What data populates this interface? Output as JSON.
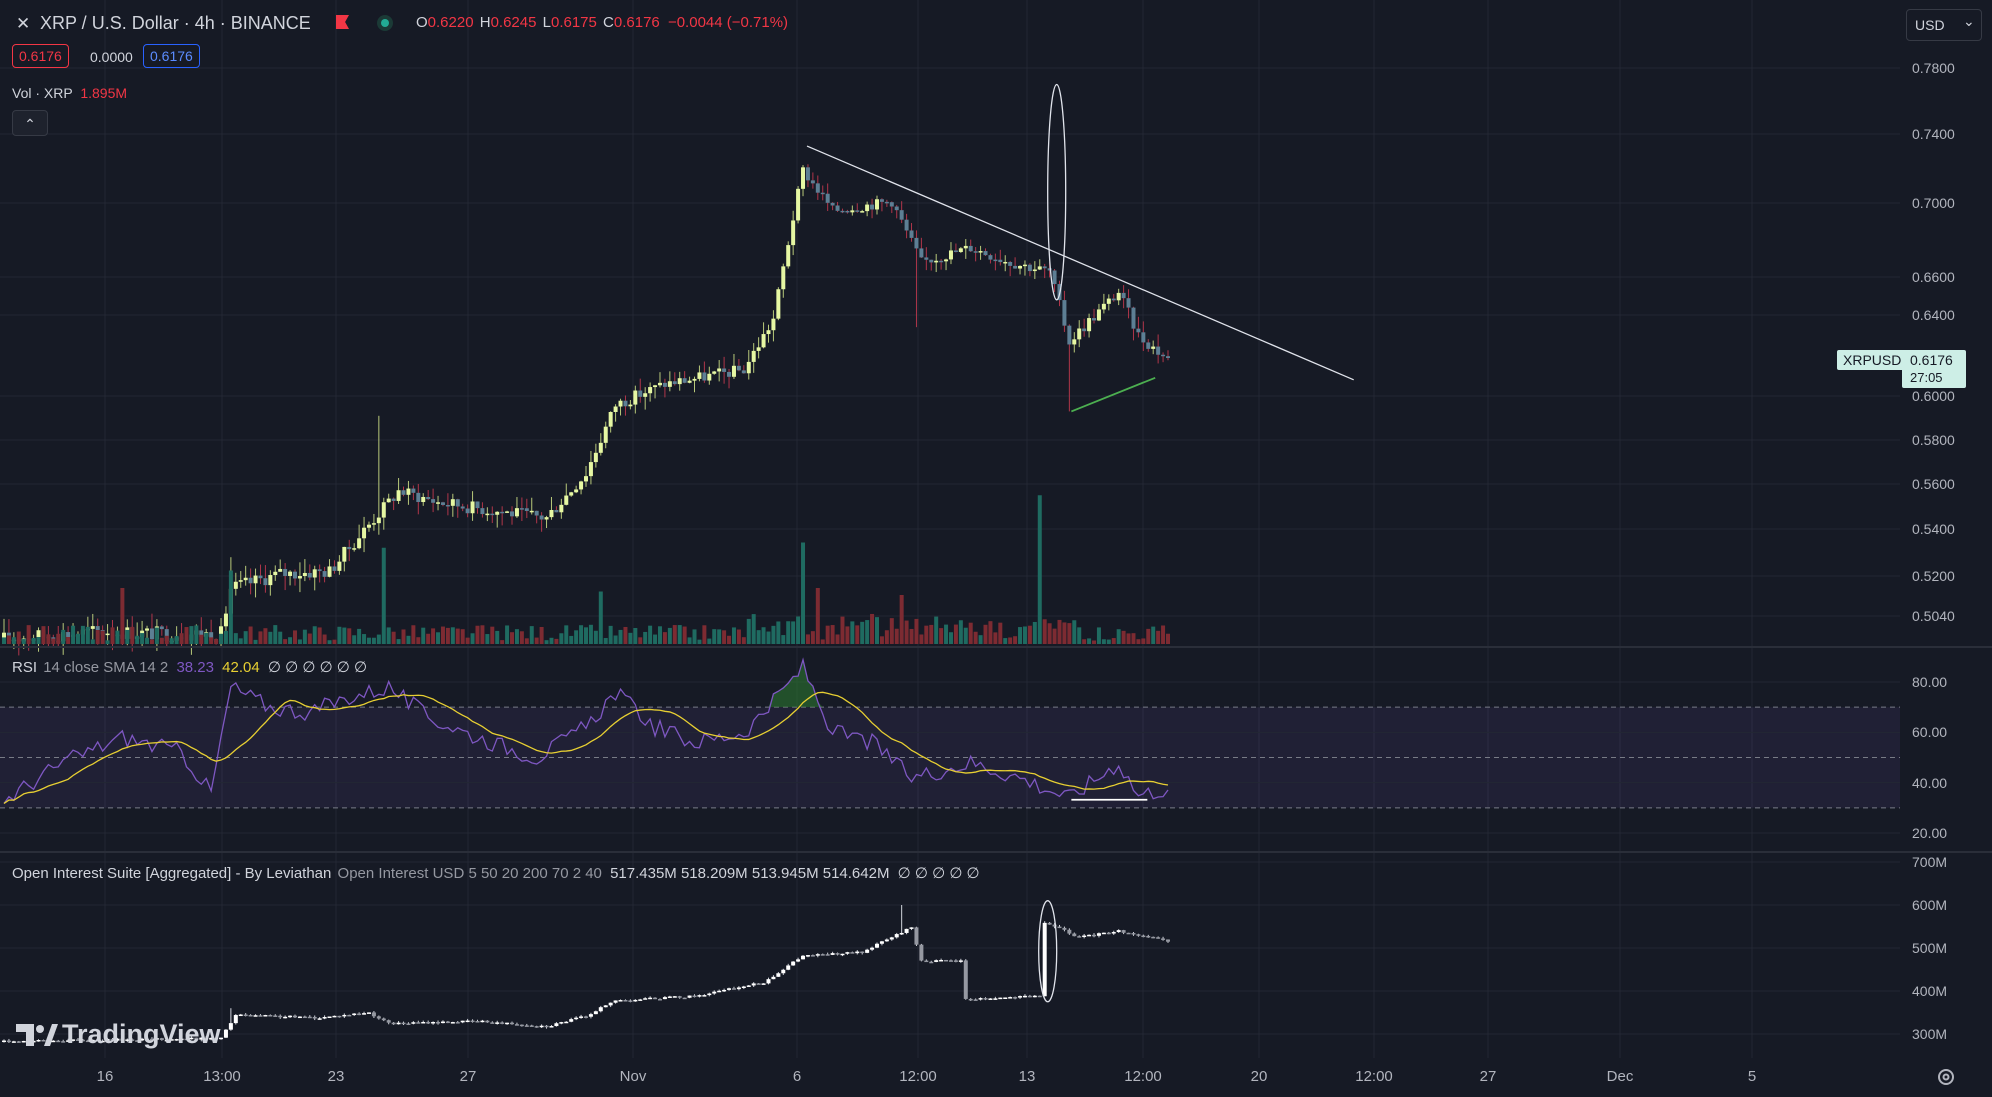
{
  "header": {
    "close_symbol": "✕",
    "symbol_title": "XRP / U.S. Dollar · 4h · BINANCE",
    "ohlc": {
      "o_label": "O",
      "o_value": "0.6220",
      "h_label": "H",
      "h_value": "0.6245",
      "l_label": "L",
      "l_value": "0.6175",
      "c_label": "C",
      "c_value": "0.6176",
      "change": "−0.0044 (−0.71%)"
    },
    "bid": "0.6176",
    "spread": "0.0000",
    "ask": "0.6176",
    "volume_label": "Vol · XRP",
    "volume_value": "1.895M",
    "collapse_symbol": "⌃"
  },
  "currency_selector": {
    "value": "USD",
    "caret": "⌄"
  },
  "price_label": {
    "symbol": "XRPUSD",
    "price": "0.6176",
    "countdown": "27:05"
  },
  "rsi_header": {
    "name": "RSI",
    "params": "14 close SMA 14 2",
    "rsi_value": "38.23",
    "sma_value": "42.04",
    "empties": "∅ ∅ ∅ ∅ ∅ ∅"
  },
  "oi_header": {
    "name": "Open Interest Suite [Aggregated] - By Leviathan",
    "params": "Open Interest USD 5 50 20 200 70 2 40",
    "values": "517.435M  518.209M  513.945M  514.642M",
    "empties": "∅ ∅ ∅ ∅ ∅"
  },
  "branding": {
    "logo_text": "TradingView"
  },
  "colors": {
    "background": "#161a25",
    "grid": "#232734",
    "bull": "#e6f7a3",
    "bear": "#5d7f94",
    "vol_up": "#1f6b61",
    "vol_down": "#7d2b32",
    "rsi": "#7e57c2",
    "rsi_sma": "#e7cf32",
    "oi": "#d1d4dc",
    "trendline": "#e0e3eb",
    "support_line": "#4caf50",
    "negative": "#f23645",
    "price_tag": "#cdeee6"
  },
  "chart_data": [
    {
      "id": "price",
      "type": "candlestick",
      "title": "XRP / U.S. Dollar · 4h · BINANCE",
      "y_ticks": [
        "0.7800",
        "0.7400",
        "0.7000",
        "0.6600",
        "0.6400",
        "0.6000",
        "0.5800",
        "0.5600",
        "0.5400",
        "0.5200",
        "0.5040"
      ],
      "x_ticks": [
        "16",
        "13:00",
        "23",
        "27",
        "Nov",
        "6",
        "12:00",
        "13",
        "12:00",
        "20",
        "12:00",
        "27",
        "Dec",
        "5"
      ],
      "anchors": [
        {
          "i": 0,
          "close": 0.495
        },
        {
          "i": 20,
          "close": 0.498
        },
        {
          "i": 30,
          "close": 0.497
        },
        {
          "i": 44,
          "close": 0.497
        },
        {
          "i": 46,
          "close": 0.515
        },
        {
          "i": 56,
          "close": 0.521
        },
        {
          "i": 66,
          "close": 0.522
        },
        {
          "i": 72,
          "close": 0.537
        },
        {
          "i": 80,
          "close": 0.557
        },
        {
          "i": 88,
          "close": 0.552
        },
        {
          "i": 100,
          "close": 0.548
        },
        {
          "i": 110,
          "close": 0.545
        },
        {
          "i": 118,
          "close": 0.565
        },
        {
          "i": 124,
          "close": 0.596
        },
        {
          "i": 134,
          "close": 0.606
        },
        {
          "i": 150,
          "close": 0.613
        },
        {
          "i": 156,
          "close": 0.638
        },
        {
          "i": 162,
          "close": 0.719
        },
        {
          "i": 168,
          "close": 0.696
        },
        {
          "i": 180,
          "close": 0.701
        },
        {
          "i": 186,
          "close": 0.668
        },
        {
          "i": 196,
          "close": 0.676
        },
        {
          "i": 204,
          "close": 0.668
        },
        {
          "i": 212,
          "close": 0.663
        },
        {
          "i": 216,
          "close": 0.627
        },
        {
          "i": 226,
          "close": 0.652
        },
        {
          "i": 230,
          "close": 0.63
        },
        {
          "i": 236,
          "close": 0.618
        }
      ],
      "annotations": {
        "resistance_trendline": [
          {
            "i": 162,
            "y": 0.733
          },
          {
            "i": 270,
            "y": 0.608
          }
        ],
        "support_line": [
          {
            "i": 216,
            "y": 0.593
          },
          {
            "i": 233,
            "y": 0.609
          }
        ],
        "highlight_ellipse": {
          "i": 211,
          "y_top": 0.77,
          "y_bottom": 0.648
        }
      }
    },
    {
      "id": "volume",
      "type": "bar",
      "series_name": "Vol · XRP",
      "last_value": "1.895M",
      "spikes": [
        {
          "i": 24,
          "rel": 0.32
        },
        {
          "i": 46,
          "rel": 0.42
        },
        {
          "i": 77,
          "rel": 0.55
        },
        {
          "i": 162,
          "rel": 0.58
        },
        {
          "i": 182,
          "rel": 0.28
        },
        {
          "i": 210,
          "rel": 0.85
        },
        {
          "i": 165,
          "rel": 0.32
        },
        {
          "i": 121,
          "rel": 0.3
        }
      ]
    },
    {
      "id": "rsi",
      "type": "line",
      "series": [
        {
          "name": "RSI 14 close",
          "last": 38.23
        },
        {
          "name": "SMA 14",
          "last": 42.04
        }
      ],
      "y_ticks": [
        "80.00",
        "60.00",
        "40.00",
        "20.00"
      ],
      "bands": {
        "upper": 70,
        "middle": 50,
        "lower": 30
      },
      "anchors": [
        {
          "i": 0,
          "v": 33
        },
        {
          "i": 12,
          "v": 48
        },
        {
          "i": 24,
          "v": 58
        },
        {
          "i": 36,
          "v": 52
        },
        {
          "i": 42,
          "v": 36
        },
        {
          "i": 46,
          "v": 78
        },
        {
          "i": 54,
          "v": 70
        },
        {
          "i": 62,
          "v": 68
        },
        {
          "i": 70,
          "v": 74
        },
        {
          "i": 78,
          "v": 78
        },
        {
          "i": 86,
          "v": 66
        },
        {
          "i": 96,
          "v": 58
        },
        {
          "i": 108,
          "v": 50
        },
        {
          "i": 118,
          "v": 62
        },
        {
          "i": 124,
          "v": 76
        },
        {
          "i": 132,
          "v": 62
        },
        {
          "i": 140,
          "v": 56
        },
        {
          "i": 150,
          "v": 60
        },
        {
          "i": 156,
          "v": 72
        },
        {
          "i": 162,
          "v": 86
        },
        {
          "i": 168,
          "v": 60
        },
        {
          "i": 176,
          "v": 56
        },
        {
          "i": 184,
          "v": 42
        },
        {
          "i": 196,
          "v": 48
        },
        {
          "i": 206,
          "v": 42
        },
        {
          "i": 216,
          "v": 34
        },
        {
          "i": 226,
          "v": 48
        },
        {
          "i": 230,
          "v": 35
        },
        {
          "i": 236,
          "v": 38
        }
      ],
      "annotations": {
        "horizontal_line": {
          "i0": 216,
          "i1": 231,
          "v": 34
        }
      }
    },
    {
      "id": "open_interest",
      "type": "candlestick",
      "title": "Open Interest Suite [Aggregated] - By Leviathan",
      "y_ticks": [
        "700M",
        "600M",
        "500M",
        "400M",
        "300M"
      ],
      "anchors": [
        {
          "i": 0,
          "v": 283
        },
        {
          "i": 44,
          "v": 290
        },
        {
          "i": 47,
          "v": 344
        },
        {
          "i": 64,
          "v": 338
        },
        {
          "i": 74,
          "v": 350
        },
        {
          "i": 78,
          "v": 324
        },
        {
          "i": 96,
          "v": 330
        },
        {
          "i": 110,
          "v": 318
        },
        {
          "i": 118,
          "v": 342
        },
        {
          "i": 124,
          "v": 378
        },
        {
          "i": 140,
          "v": 388
        },
        {
          "i": 154,
          "v": 420
        },
        {
          "i": 162,
          "v": 482
        },
        {
          "i": 174,
          "v": 490
        },
        {
          "i": 184,
          "v": 548
        },
        {
          "i": 186,
          "v": 470
        },
        {
          "i": 194,
          "v": 470
        },
        {
          "i": 195,
          "v": 381
        },
        {
          "i": 210,
          "v": 388
        },
        {
          "i": 211,
          "v": 560
        },
        {
          "i": 218,
          "v": 525
        },
        {
          "i": 226,
          "v": 540
        },
        {
          "i": 236,
          "v": 515
        }
      ],
      "annotations": {
        "highlight_ellipse": {
          "i": 211,
          "v_top": 610,
          "v_bottom": 375
        }
      }
    }
  ]
}
